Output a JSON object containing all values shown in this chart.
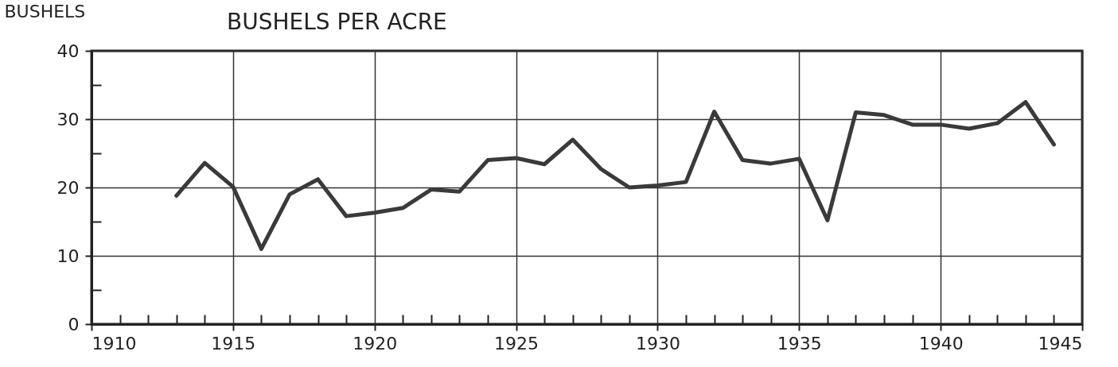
{
  "chart_data": {
    "type": "line",
    "title": "BUSHELS PER ACRE",
    "ylabel": "BUSHELS",
    "x": [
      1913,
      1914,
      1915,
      1916,
      1917,
      1918,
      1919,
      1920,
      1921,
      1922,
      1923,
      1924,
      1925,
      1926,
      1927,
      1928,
      1929,
      1930,
      1931,
      1932,
      1933,
      1934,
      1935,
      1936,
      1937,
      1938,
      1939,
      1940,
      1941,
      1942,
      1943,
      1944
    ],
    "series": [
      {
        "color": "#3a3a3a",
        "values": [
          18.8,
          23.6,
          20.1,
          11,
          19,
          21.2,
          15.8,
          16.3,
          17,
          19.7,
          19.4,
          24,
          24.3,
          23.4,
          27,
          22.7,
          20,
          20.3,
          20.8,
          31.1,
          24,
          23.5,
          24.2,
          15.2,
          31,
          30.6,
          29.2,
          29.2,
          28.6,
          29.4,
          32.5,
          26.3
        ]
      }
    ],
    "xlim": [
      1910,
      1945
    ],
    "ylim": [
      0,
      40
    ],
    "xticks": [
      1910,
      {
        "value": 1911,
        "label": null
      },
      {
        "value": 1912,
        "label": null
      },
      {
        "value": 1913,
        "label": null
      },
      {
        "value": 1914,
        "label": null
      },
      1915,
      {
        "value": 1916,
        "label": null
      },
      {
        "value": 1917,
        "label": null
      },
      {
        "value": 1918,
        "label": null
      },
      {
        "value": 1919,
        "label": null
      },
      1920,
      {
        "value": 1921,
        "label": null
      },
      {
        "value": 1922,
        "label": null
      },
      {
        "value": 1923,
        "label": null
      },
      {
        "value": 1924,
        "label": null
      },
      1925,
      {
        "value": 1926,
        "label": null
      },
      {
        "value": 1927,
        "label": null
      },
      {
        "value": 1928,
        "label": null
      },
      {
        "value": 1929,
        "label": null
      },
      1930,
      {
        "value": 1931,
        "label": null
      },
      {
        "value": 1932,
        "label": null
      },
      {
        "value": 1933,
        "label": null
      },
      {
        "value": 1934,
        "label": null
      },
      1935,
      {
        "value": 1936,
        "label": null
      },
      {
        "value": 1937,
        "label": null
      },
      {
        "value": 1938,
        "label": null
      },
      {
        "value": 1939,
        "label": null
      },
      1940,
      {
        "value": 1941,
        "label": null
      },
      {
        "value": 1942,
        "label": null
      },
      {
        "value": 1943,
        "label": null
      },
      {
        "value": 1944,
        "label": null
      },
      1945
    ],
    "yticks": [
      0,
      {
        "value": 5,
        "label": null
      },
      10,
      {
        "value": 15,
        "label": null
      },
      20,
      {
        "value": 25,
        "label": null
      },
      30,
      {
        "value": 35,
        "label": null
      },
      40
    ],
    "grid": true,
    "marker": "none",
    "line_style": "solid"
  }
}
